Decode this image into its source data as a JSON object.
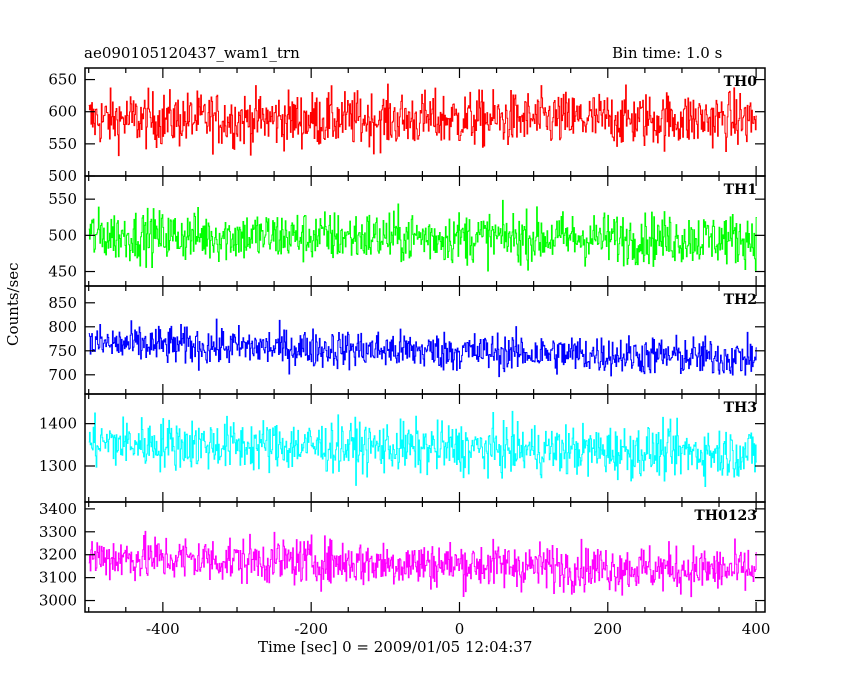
{
  "header": {
    "title": "ae090105120437_wam1_trn",
    "bin_time": "Bin time: 1.0 s"
  },
  "axes": {
    "xlabel": "Time [sec] 0 = 2009/01/05 12:04:37",
    "ylabel": "Counts/sec"
  },
  "chart_data": {
    "type": "line",
    "title": "ae090105120437_wam1_trn",
    "subtitle": "Bin time: 1.0 s",
    "xlabel": "Time [sec] 0 = 2009/01/05 12:04:37",
    "ylabel": "Counts/sec",
    "xlim": [
      -505,
      412
    ],
    "x_ticks": [
      -400,
      -200,
      0,
      200,
      400
    ],
    "x_range_data": [
      -500,
      400
    ],
    "bin_time_s": 1.0,
    "grid": false,
    "panels": [
      {
        "name": "TH0",
        "color": "#ff0000",
        "ylim": [
          500,
          668
        ],
        "y_ticks": [
          500,
          550,
          600,
          650
        ],
        "typical_range": [
          545,
          630
        ],
        "mean_start": 588,
        "mean_end": 588
      },
      {
        "name": "TH1",
        "color": "#00ff00",
        "ylim": [
          430,
          582
        ],
        "y_ticks": [
          450,
          500,
          550
        ],
        "typical_range": [
          465,
          535
        ],
        "mean_start": 500,
        "mean_end": 495
      },
      {
        "name": "TH2",
        "color": "#0000ff",
        "ylim": [
          660,
          885
        ],
        "y_ticks": [
          700,
          750,
          800,
          850
        ],
        "typical_range": [
          710,
          790
        ],
        "mean_start": 765,
        "mean_end": 735
      },
      {
        "name": "TH3",
        "color": "#00ffff",
        "ylim": [
          1215,
          1470
        ],
        "y_ticks": [
          1300,
          1400
        ],
        "typical_range": [
          1290,
          1410
        ],
        "mean_start": 1355,
        "mean_end": 1330
      },
      {
        "name": "TH0123",
        "color": "#ff00ff",
        "ylim": [
          2950,
          3430
        ],
        "y_ticks": [
          3000,
          3100,
          3200,
          3300,
          3400
        ],
        "typical_range": [
          3060,
          3260
        ],
        "mean_start": 3190,
        "mean_end": 3130
      }
    ]
  }
}
